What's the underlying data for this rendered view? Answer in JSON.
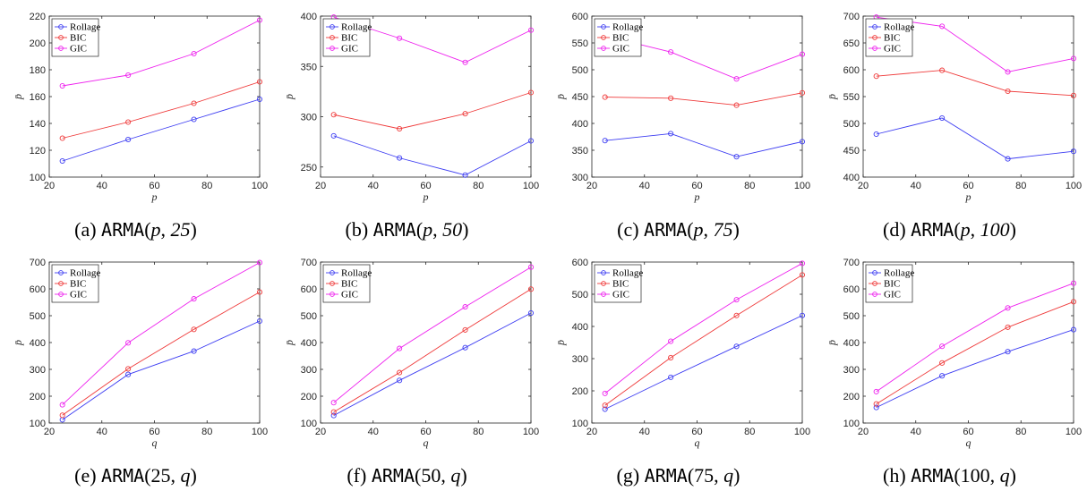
{
  "colors": {
    "Rollage": "#3d3df2",
    "BIC": "#ef3a3a",
    "GIC": "#ee22ee"
  },
  "chart_data": [
    {
      "type": "line",
      "caption": {
        "tag": "(a)",
        "model": "ARMA",
        "args": [
          "p",
          ", ",
          "25"
        ]
      },
      "x": [
        25,
        50,
        75,
        100
      ],
      "xlabel": "p",
      "ylabel": "p̄",
      "xlim": [
        20,
        100
      ],
      "ylim": [
        100,
        220
      ],
      "xticks": [
        20,
        40,
        60,
        80,
        100
      ],
      "yticks": [
        100,
        120,
        140,
        160,
        180,
        200,
        220
      ],
      "legend": "top-left",
      "series": [
        {
          "name": "Rollage",
          "values": [
            112,
            128,
            143,
            158
          ]
        },
        {
          "name": "BIC",
          "values": [
            129,
            141,
            155,
            171
          ]
        },
        {
          "name": "GIC",
          "values": [
            168,
            176,
            192,
            217
          ]
        }
      ]
    },
    {
      "type": "line",
      "caption": {
        "tag": "(b)",
        "model": "ARMA",
        "args": [
          "p",
          ", ",
          "50"
        ]
      },
      "x": [
        25,
        50,
        75,
        100
      ],
      "xlabel": "p",
      "ylabel": "p̄",
      "xlim": [
        20,
        100
      ],
      "ylim": [
        240,
        400
      ],
      "xticks": [
        20,
        40,
        60,
        80,
        100
      ],
      "yticks": [
        250,
        300,
        350,
        400
      ],
      "legend": "top-left",
      "series": [
        {
          "name": "Rollage",
          "values": [
            281,
            259,
            242,
            276
          ]
        },
        {
          "name": "BIC",
          "values": [
            302,
            288,
            303,
            324
          ]
        },
        {
          "name": "GIC",
          "values": [
            399,
            378,
            354,
            386
          ]
        }
      ]
    },
    {
      "type": "line",
      "caption": {
        "tag": "(c)",
        "model": "ARMA",
        "args": [
          "p",
          ", ",
          "75"
        ]
      },
      "x": [
        25,
        50,
        75,
        100
      ],
      "xlabel": "p",
      "ylabel": "p̄",
      "xlim": [
        20,
        100
      ],
      "ylim": [
        300,
        600
      ],
      "xticks": [
        20,
        40,
        60,
        80,
        100
      ],
      "yticks": [
        300,
        350,
        400,
        450,
        500,
        550,
        600
      ],
      "legend": "top-left",
      "series": [
        {
          "name": "Rollage",
          "values": [
            368,
            381,
            338,
            366
          ]
        },
        {
          "name": "BIC",
          "values": [
            449,
            447,
            434,
            457
          ]
        },
        {
          "name": "GIC",
          "values": [
            563,
            533,
            483,
            529
          ]
        }
      ]
    },
    {
      "type": "line",
      "caption": {
        "tag": "(d)",
        "model": "ARMA",
        "args": [
          "p",
          ", ",
          "100"
        ]
      },
      "x": [
        25,
        50,
        75,
        100
      ],
      "xlabel": "p",
      "ylabel": "p̄",
      "xlim": [
        20,
        100
      ],
      "ylim": [
        400,
        700
      ],
      "xticks": [
        20,
        40,
        60,
        80,
        100
      ],
      "yticks": [
        400,
        450,
        500,
        550,
        600,
        650,
        700
      ],
      "legend": "top-left",
      "series": [
        {
          "name": "Rollage",
          "values": [
            480,
            510,
            434,
            448
          ]
        },
        {
          "name": "BIC",
          "values": [
            588,
            599,
            560,
            552
          ]
        },
        {
          "name": "GIC",
          "values": [
            698,
            681,
            596,
            621
          ]
        }
      ]
    },
    {
      "type": "line",
      "caption": {
        "tag": "(e)",
        "model": "ARMA",
        "args": [
          "25",
          ", ",
          "q"
        ]
      },
      "x": [
        25,
        50,
        75,
        100
      ],
      "xlabel": "q",
      "ylabel": "p̄",
      "xlim": [
        20,
        100
      ],
      "ylim": [
        100,
        700
      ],
      "xticks": [
        20,
        40,
        60,
        80,
        100
      ],
      "yticks": [
        100,
        200,
        300,
        400,
        500,
        600,
        700
      ],
      "legend": "top-left",
      "series": [
        {
          "name": "Rollage",
          "values": [
            112,
            281,
            368,
            480
          ]
        },
        {
          "name": "BIC",
          "values": [
            129,
            302,
            449,
            588
          ]
        },
        {
          "name": "GIC",
          "values": [
            168,
            399,
            563,
            698
          ]
        }
      ]
    },
    {
      "type": "line",
      "caption": {
        "tag": "(f)",
        "model": "ARMA",
        "args": [
          "50",
          ", ",
          "q"
        ]
      },
      "x": [
        25,
        50,
        75,
        100
      ],
      "xlabel": "q",
      "ylabel": "p̄",
      "xlim": [
        20,
        100
      ],
      "ylim": [
        100,
        700
      ],
      "xticks": [
        20,
        40,
        60,
        80,
        100
      ],
      "yticks": [
        100,
        200,
        300,
        400,
        500,
        600,
        700
      ],
      "legend": "top-left",
      "series": [
        {
          "name": "Rollage",
          "values": [
            128,
            259,
            381,
            510
          ]
        },
        {
          "name": "BIC",
          "values": [
            141,
            288,
            447,
            599
          ]
        },
        {
          "name": "GIC",
          "values": [
            176,
            378,
            533,
            681
          ]
        }
      ]
    },
    {
      "type": "line",
      "caption": {
        "tag": "(g)",
        "model": "ARMA",
        "args": [
          "75",
          ", ",
          "q"
        ]
      },
      "x": [
        25,
        50,
        75,
        100
      ],
      "xlabel": "q",
      "ylabel": "p̄",
      "xlim": [
        20,
        100
      ],
      "ylim": [
        100,
        600
      ],
      "xticks": [
        20,
        40,
        60,
        80,
        100
      ],
      "yticks": [
        100,
        200,
        300,
        400,
        500,
        600
      ],
      "legend": "top-left",
      "series": [
        {
          "name": "Rollage",
          "values": [
            143,
            242,
            338,
            434
          ]
        },
        {
          "name": "BIC",
          "values": [
            155,
            303,
            434,
            560
          ]
        },
        {
          "name": "GIC",
          "values": [
            192,
            354,
            483,
            596
          ]
        }
      ]
    },
    {
      "type": "line",
      "caption": {
        "tag": "(h)",
        "model": "ARMA",
        "args": [
          "100",
          ", ",
          "q"
        ]
      },
      "x": [
        25,
        50,
        75,
        100
      ],
      "xlabel": "q",
      "ylabel": "p̄",
      "xlim": [
        20,
        100
      ],
      "ylim": [
        100,
        700
      ],
      "xticks": [
        20,
        40,
        60,
        80,
        100
      ],
      "yticks": [
        100,
        200,
        300,
        400,
        500,
        600,
        700
      ],
      "legend": "top-left",
      "series": [
        {
          "name": "Rollage",
          "values": [
            158,
            276,
            366,
            448
          ]
        },
        {
          "name": "BIC",
          "values": [
            171,
            324,
            457,
            552
          ]
        },
        {
          "name": "GIC",
          "values": [
            217,
            386,
            529,
            621
          ]
        }
      ]
    }
  ]
}
